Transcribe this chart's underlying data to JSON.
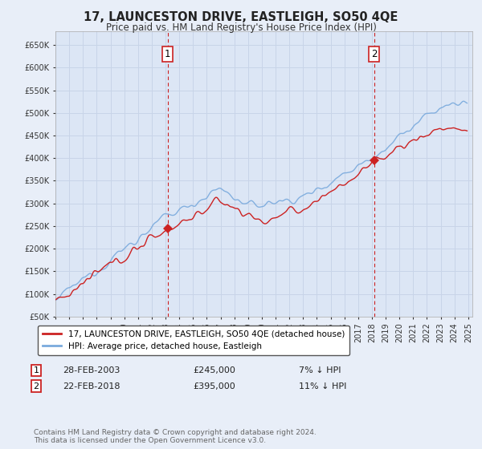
{
  "title": "17, LAUNCESTON DRIVE, EASTLEIGH, SO50 4QE",
  "subtitle": "Price paid vs. HM Land Registry's House Price Index (HPI)",
  "background_color": "#e8eef8",
  "plot_bg_color": "#dce6f5",
  "grid_color": "#c8d4e8",
  "hpi_color": "#7aaadd",
  "price_color": "#cc2222",
  "vline_color": "#cc2222",
  "ylim": [
    50000,
    680000
  ],
  "yticks": [
    50000,
    100000,
    150000,
    200000,
    250000,
    300000,
    350000,
    400000,
    450000,
    500000,
    550000,
    600000,
    650000
  ],
  "start_year": 1995,
  "end_year": 2025,
  "sale1_year": 2003.15,
  "sale1_price": 245000,
  "sale1_label": "1",
  "sale1_date_str": "28-FEB-2003",
  "sale1_hpi_diff": "7% ↓ HPI",
  "sale2_year": 2018.15,
  "sale2_price": 395000,
  "sale2_label": "2",
  "sale2_date_str": "22-FEB-2018",
  "sale2_hpi_diff": "11% ↓ HPI",
  "legend_title1": "17, LAUNCESTON DRIVE, EASTLEIGH, SO50 4QE (detached house)",
  "legend_title2": "HPI: Average price, detached house, Eastleigh",
  "footnote": "Contains HM Land Registry data © Crown copyright and database right 2024.\nThis data is licensed under the Open Government Licence v3.0."
}
